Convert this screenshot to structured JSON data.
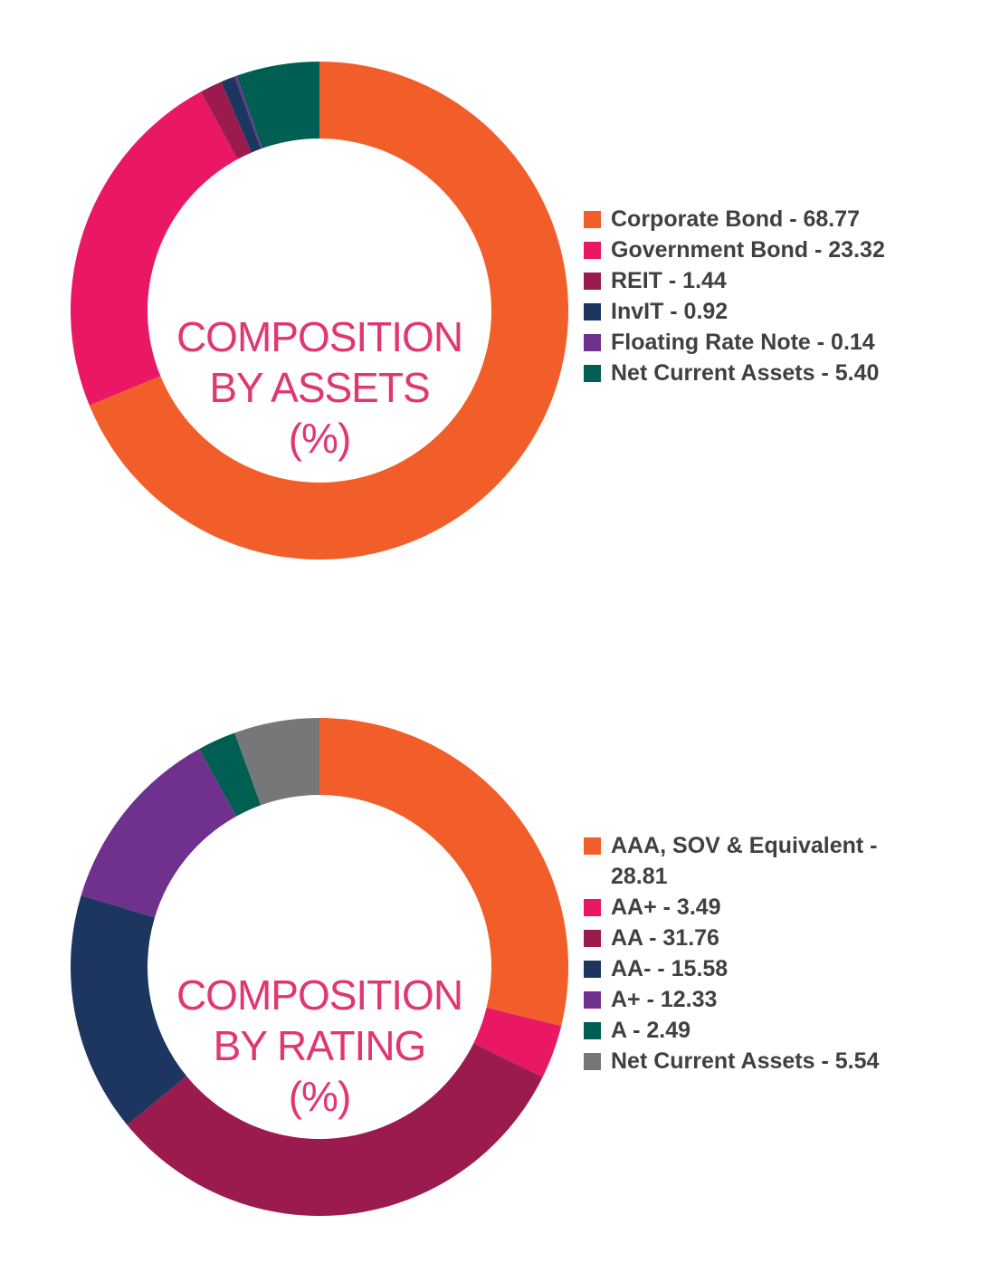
{
  "chart_data": [
    {
      "type": "pie",
      "title": "COMPOSITION BY ASSETS (%)",
      "title_lines": [
        "COMPOSITION",
        "BY ASSETS",
        "(%)"
      ],
      "legend_placement": "right",
      "slices": [
        {
          "label": "Corporate Bond - 68.77",
          "name": "Corporate Bond",
          "value": 68.77,
          "color": "#f15e2a"
        },
        {
          "label": "Government Bond - 23.32",
          "name": "Government Bond",
          "value": 23.32,
          "color": "#ea1765"
        },
        {
          "label": "REIT - 1.44",
          "name": "REIT",
          "value": 1.44,
          "color": "#9b1b4e"
        },
        {
          "label": "InvIT - 0.92",
          "name": "InvIT",
          "value": 0.92,
          "color": "#1c3660"
        },
        {
          "label": "Floating Rate Note - 0.14",
          "name": "Floating Rate Note",
          "value": 0.14,
          "color": "#70308e"
        },
        {
          "label": "Net Current Assets - 5.40",
          "name": "Net Current Assets",
          "value": 5.4,
          "color": "#005f52"
        }
      ]
    },
    {
      "type": "pie",
      "title": "COMPOSITION BY RATING (%)",
      "title_lines": [
        "COMPOSITION",
        "BY RATING",
        "(%)"
      ],
      "legend_placement": "right",
      "slices": [
        {
          "label": "AAA, SOV & Equivalent - 28.81",
          "label_lines": [
            "AAA, SOV & Equivalent -",
            "28.81"
          ],
          "name": "AAA, SOV & Equivalent",
          "value": 28.81,
          "color": "#f15e2a"
        },
        {
          "label": "AA+ - 3.49",
          "name": "AA+",
          "value": 3.49,
          "color": "#ea1765"
        },
        {
          "label": "AA - 31.76",
          "name": "AA",
          "value": 31.76,
          "color": "#9b1b4e"
        },
        {
          "label": "AA- - 15.58",
          "name": "AA-",
          "value": 15.58,
          "color": "#1c3660"
        },
        {
          "label": "A+ - 12.33",
          "name": "A+",
          "value": 12.33,
          "color": "#70308e"
        },
        {
          "label": "A - 2.49",
          "name": "A",
          "value": 2.49,
          "color": "#005f52"
        },
        {
          "label": "Net Current Assets - 5.54",
          "name": "Net Current Assets",
          "value": 5.54,
          "color": "#767778"
        }
      ]
    }
  ]
}
